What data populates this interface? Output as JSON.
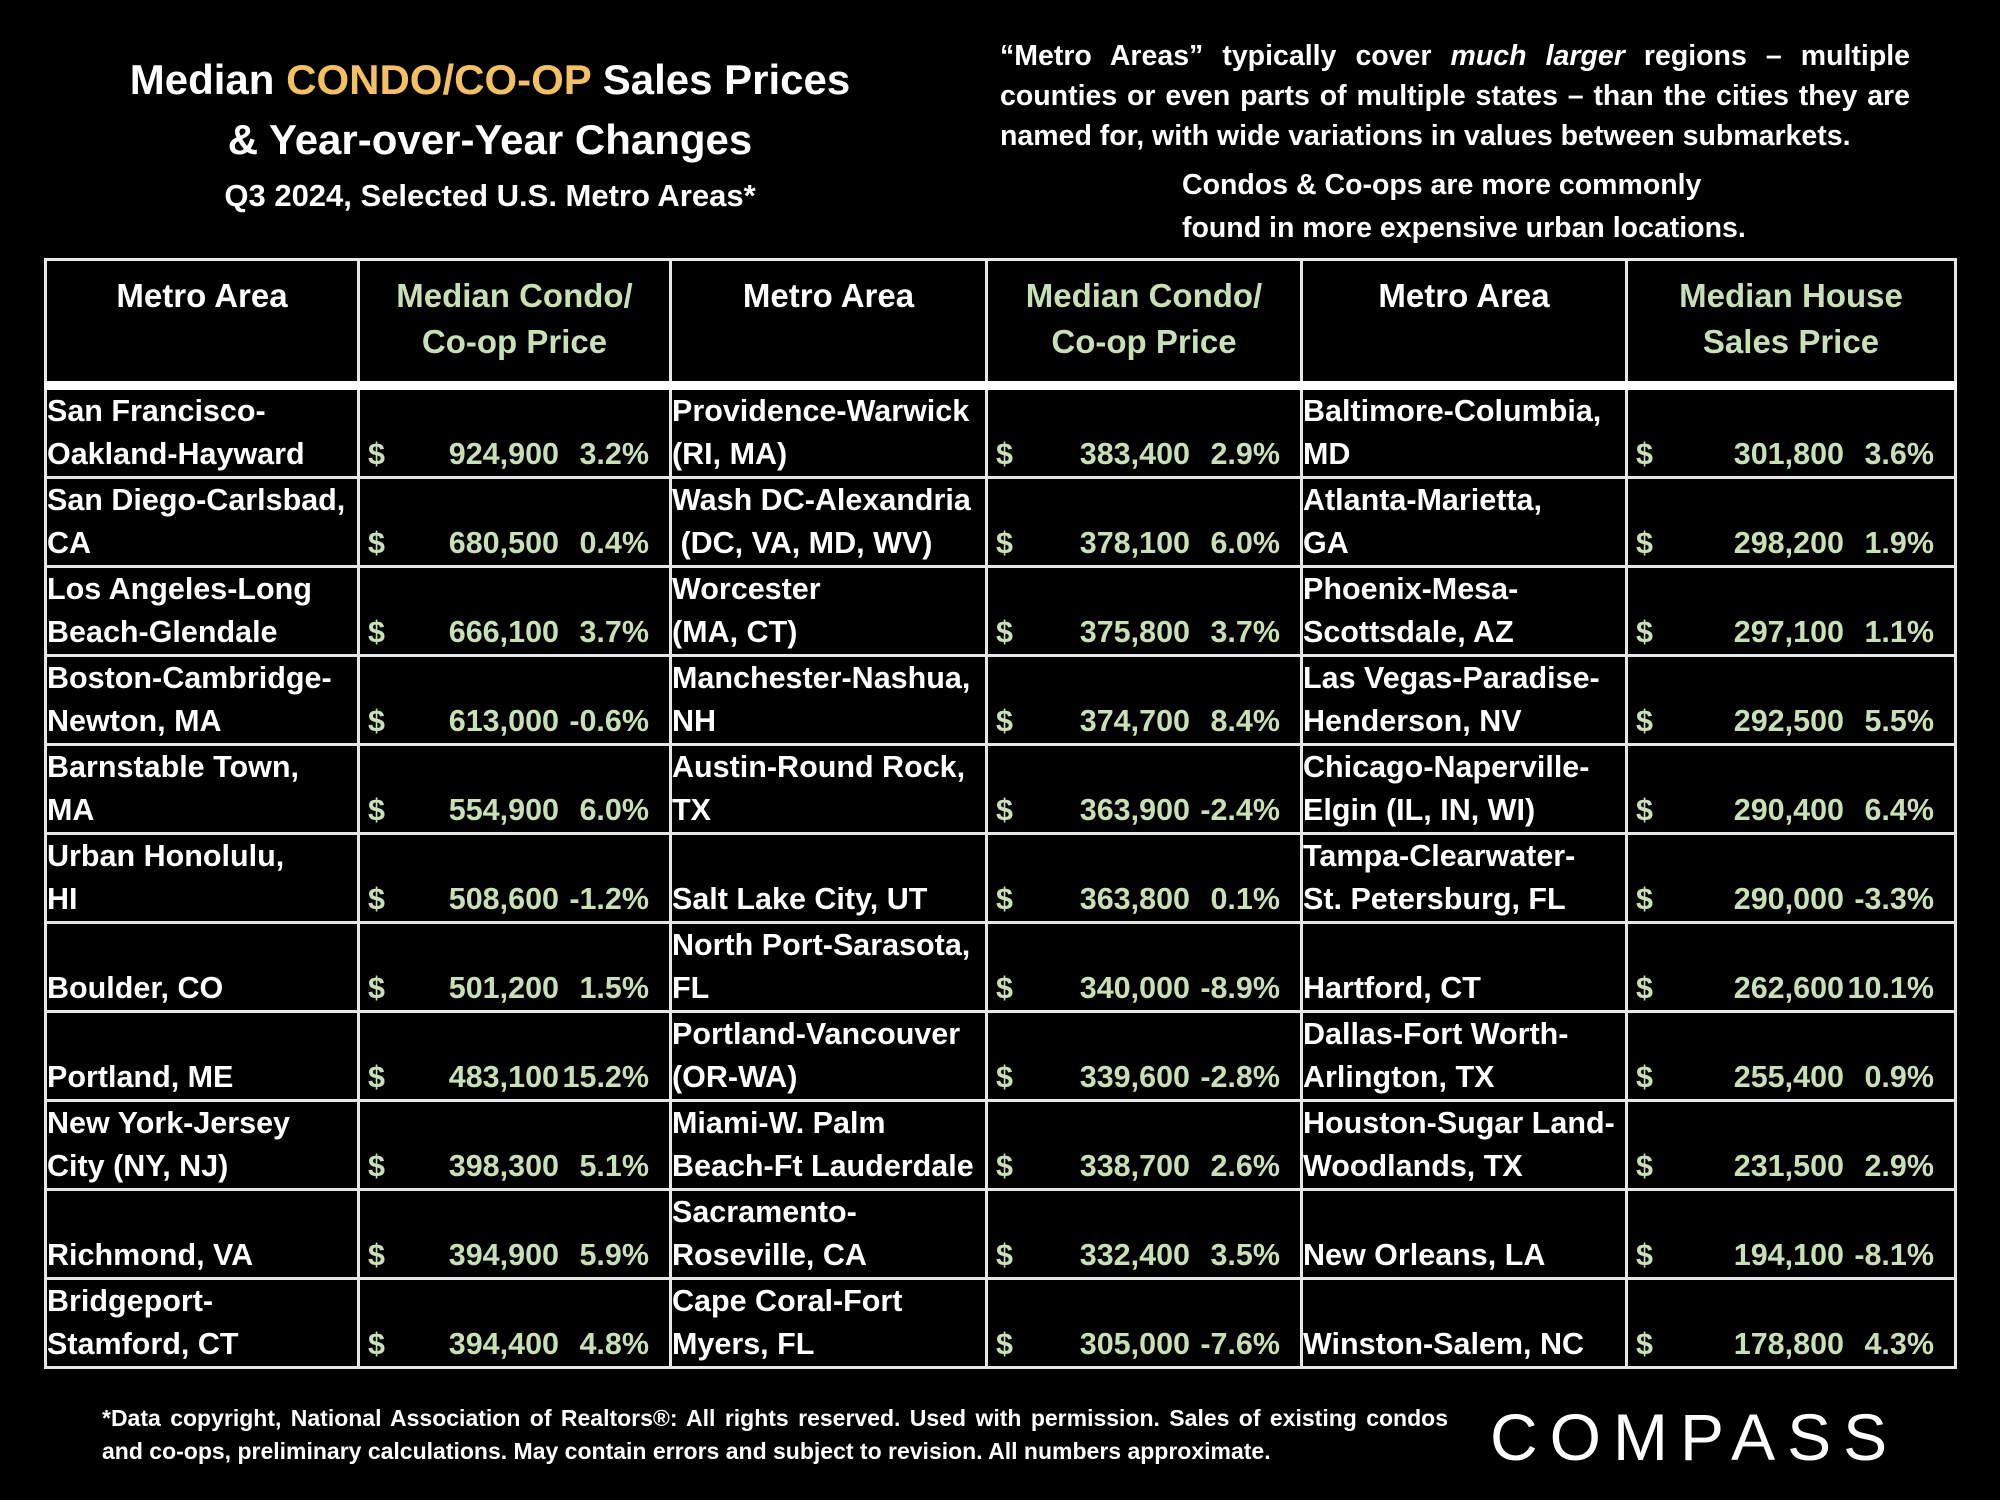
{
  "title": {
    "line1_pre": "Median ",
    "line1_highlight": "CONDO/CO-OP",
    "line1_post": " Sales Prices",
    "line2": "& Year-over-Year Changes",
    "subtitle": "Q3 2024, Selected U.S. Metro Areas*"
  },
  "note1": {
    "part1": "“Metro Areas” typically cover ",
    "italic": "much larger",
    "part2": " regions – multiple counties or even parts of multiple states – than the cities they are named for, with wide variations in values between submarkets."
  },
  "note2": {
    "line1": "Condos & Co-ops are more commonly",
    "line2": "found in more expensive urban locations."
  },
  "headers": {
    "col1_metro": "Metro Area",
    "col1_price_l1": "Median Condo/",
    "col1_price_l2": "Co-op Price",
    "col2_metro": "Metro Area",
    "col2_price_l1": "Median Condo/",
    "col2_price_l2": "Co-op Price",
    "col3_metro": "Metro Area",
    "col3_price_l1": "Median House",
    "col3_price_l2": "Sales Price"
  },
  "currency": "$",
  "rows": [
    [
      {
        "l1": "San Francisco-",
        "l2": "Oakland-Hayward",
        "price": "924,900",
        "change": "3.2%"
      },
      {
        "l1": "Providence-Warwick",
        "l2": "(RI, MA)",
        "price": "383,400",
        "change": "2.9%"
      },
      {
        "l1": "Baltimore-Columbia,",
        "l2": "MD",
        "price": "301,800",
        "change": "3.6%"
      }
    ],
    [
      {
        "l1": "San Diego-Carlsbad,",
        "l2": "CA",
        "price": "680,500",
        "change": "0.4%"
      },
      {
        "l1": "Wash DC-Alexandria",
        "l2": " (DC, VA, MD, WV)",
        "price": "378,100",
        "change": "6.0%"
      },
      {
        "l1": "Atlanta-Marietta,",
        "l2": "GA",
        "price": "298,200",
        "change": "1.9%"
      }
    ],
    [
      {
        "l1": "Los Angeles-Long",
        "l2": "Beach-Glendale",
        "price": "666,100",
        "change": "3.7%"
      },
      {
        "l1": "Worcester",
        "l2": "(MA, CT)",
        "price": "375,800",
        "change": "3.7%"
      },
      {
        "l1": "Phoenix-Mesa-",
        "l2": "Scottsdale, AZ",
        "price": "297,100",
        "change": "1.1%"
      }
    ],
    [
      {
        "l1": "Boston-Cambridge-",
        "l2": "Newton, MA",
        "price": "613,000",
        "change": "-0.6%"
      },
      {
        "l1": "Manchester-Nashua,",
        "l2": "NH",
        "price": "374,700",
        "change": "8.4%"
      },
      {
        "l1": "Las Vegas-Paradise-",
        "l2": "Henderson, NV",
        "price": "292,500",
        "change": "5.5%"
      }
    ],
    [
      {
        "l1": "Barnstable Town,",
        "l2": "MA",
        "price": "554,900",
        "change": "6.0%"
      },
      {
        "l1": "Austin-Round Rock,",
        "l2": "TX",
        "price": "363,900",
        "change": "-2.4%"
      },
      {
        "l1": "Chicago-Naperville-",
        "l2": "Elgin (IL, IN, WI)",
        "price": "290,400",
        "change": "6.4%"
      }
    ],
    [
      {
        "l1": "Urban Honolulu,",
        "l2": "HI",
        "price": "508,600",
        "change": "-1.2%"
      },
      {
        "l1": "",
        "l2": "Salt Lake City, UT",
        "price": "363,800",
        "change": "0.1%"
      },
      {
        "l1": "Tampa-Clearwater-",
        "l2": "St. Petersburg, FL",
        "price": "290,000",
        "change": "-3.3%"
      }
    ],
    [
      {
        "l1": "",
        "l2": "Boulder, CO",
        "price": "501,200",
        "change": "1.5%"
      },
      {
        "l1": "North Port-Sarasota,",
        "l2": "FL",
        "price": "340,000",
        "change": "-8.9%"
      },
      {
        "l1": "",
        "l2": "Hartford, CT",
        "price": "262,600",
        "change": "10.1%"
      }
    ],
    [
      {
        "l1": "",
        "l2": "Portland, ME",
        "price": "483,100",
        "change": "15.2%"
      },
      {
        "l1": "Portland-Vancouver",
        "l2": "(OR-WA)",
        "price": "339,600",
        "change": "-2.8%"
      },
      {
        "l1": "Dallas-Fort Worth-",
        "l2": "Arlington, TX",
        "price": "255,400",
        "change": "0.9%"
      }
    ],
    [
      {
        "l1": "New York-Jersey",
        "l2": "City (NY, NJ)",
        "price": "398,300",
        "change": "5.1%"
      },
      {
        "l1": "Miami-W. Palm",
        "l2": "Beach-Ft Lauderdale",
        "price": "338,700",
        "change": "2.6%"
      },
      {
        "l1": "Houston-Sugar Land-",
        "l2": "Woodlands, TX",
        "price": "231,500",
        "change": "2.9%"
      }
    ],
    [
      {
        "l1": "",
        "l2": "Richmond, VA",
        "price": "394,900",
        "change": "5.9%"
      },
      {
        "l1": "Sacramento-",
        "l2": "Roseville, CA",
        "price": "332,400",
        "change": "3.5%"
      },
      {
        "l1": "",
        "l2": "New Orleans, LA",
        "price": "194,100",
        "change": "-8.1%"
      }
    ],
    [
      {
        "l1": "Bridgeport-",
        "l2": "Stamford, CT",
        "price": "394,400",
        "change": "4.8%"
      },
      {
        "l1": "Cape Coral-Fort",
        "l2": "Myers, FL",
        "price": "305,000",
        "change": "-7.6%"
      },
      {
        "l1": "",
        "l2": "Winston-Salem, NC",
        "price": "178,800",
        "change": "4.3%"
      }
    ]
  ],
  "footnote": "*Data copyright, National Association of Realtors®: All rights reserved. Used with permission. Sales of existing condos and co-ops, preliminary calculations. May contain errors and subject to revision. All numbers approximate.",
  "logo": "COMPASS"
}
